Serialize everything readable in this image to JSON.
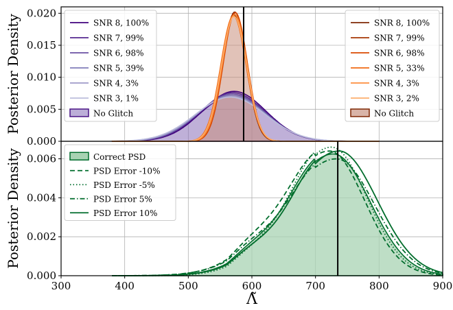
{
  "chart_data": [
    {
      "type": "area",
      "panel": "top",
      "ylabel": "Posterior Density",
      "xlim": [
        300,
        900
      ],
      "ylim": [
        0,
        0.021
      ],
      "yticks": [
        "0.000",
        "0.005",
        "0.010",
        "0.015",
        "0.020"
      ],
      "grid": true,
      "vline_x": 587,
      "legend_left": {
        "placement": "top-left",
        "entries": [
          {
            "label": "SNR 8, 100%",
            "color": "#3f007d"
          },
          {
            "label": "SNR 7, 99%",
            "color": "#54278f"
          },
          {
            "label": "SNR 6, 98%",
            "color": "#6a51a3"
          },
          {
            "label": "SNR 5, 39%",
            "color": "#807dba"
          },
          {
            "label": "SNR 4, 3%",
            "color": "#9e9ac8"
          },
          {
            "label": "SNR 3, 1%",
            "color": "#bcbddc"
          },
          {
            "label": "No Glitch",
            "color": "#4a1486",
            "fill": "#bcaed8"
          }
        ]
      },
      "legend_right": {
        "placement": "top-right",
        "entries": [
          {
            "label": "SNR 8, 100%",
            "color": "#7f2704"
          },
          {
            "label": "SNR 7, 99%",
            "color": "#a63603"
          },
          {
            "label": "SNR 6, 98%",
            "color": "#d94801"
          },
          {
            "label": "SNR 5, 33%",
            "color": "#f16913"
          },
          {
            "label": "SNR 4, 3%",
            "color": "#fd8d3c"
          },
          {
            "label": "SNR 3, 2%",
            "color": "#fdae6b"
          },
          {
            "label": "No Glitch",
            "color": "#7f2704",
            "fill": "#d9b4a8"
          }
        ]
      },
      "series": [
        {
          "name": "No Glitch",
          "group": "purple",
          "filled": true,
          "color": "#4a1486",
          "fill": "#8a6fb8",
          "mu": 570,
          "sigma": 51,
          "peak": 0.0072
        },
        {
          "name": "SNR 8, 100%",
          "group": "purple",
          "color": "#3f007d",
          "mu": 572,
          "sigma": 50,
          "peak": 0.0078
        },
        {
          "name": "SNR 7, 99%",
          "group": "purple",
          "color": "#54278f",
          "mu": 570,
          "sigma": 51,
          "peak": 0.0076
        },
        {
          "name": "SNR 6, 98%",
          "group": "purple",
          "color": "#6a51a3",
          "mu": 569,
          "sigma": 52,
          "peak": 0.0074
        },
        {
          "name": "SNR 5, 39%",
          "group": "purple",
          "color": "#807dba",
          "mu": 568,
          "sigma": 53,
          "peak": 0.0072
        },
        {
          "name": "SNR 4, 3%",
          "group": "purple",
          "color": "#9e9ac8",
          "mu": 567,
          "sigma": 54,
          "peak": 0.007
        },
        {
          "name": "SNR 3, 1%",
          "group": "purple",
          "color": "#bcbddc",
          "mu": 566,
          "sigma": 55,
          "peak": 0.0069
        },
        {
          "name": "No Glitch",
          "group": "orange",
          "filled": true,
          "color": "#7f2704",
          "fill": "#c98f7e",
          "mu": 572,
          "sigma": 19,
          "peak": 0.0197
        },
        {
          "name": "SNR 8, 100%",
          "group": "orange",
          "color": "#7f2704",
          "mu": 573,
          "sigma": 19,
          "peak": 0.0202
        },
        {
          "name": "SNR 7, 99%",
          "group": "orange",
          "color": "#a63603",
          "mu": 572,
          "sigma": 19.5,
          "peak": 0.0199
        },
        {
          "name": "SNR 6, 98%",
          "group": "orange",
          "color": "#d94801",
          "mu": 574,
          "sigma": 19,
          "peak": 0.0201
        },
        {
          "name": "SNR 5, 33%",
          "group": "orange",
          "color": "#f16913",
          "mu": 571,
          "sigma": 20,
          "peak": 0.0196
        },
        {
          "name": "SNR 4, 3%",
          "group": "orange",
          "color": "#fd8d3c",
          "mu": 573,
          "sigma": 19.5,
          "peak": 0.0198
        },
        {
          "name": "SNR 3, 2%",
          "group": "orange",
          "color": "#fdae6b",
          "mu": 572,
          "sigma": 20,
          "peak": 0.0195
        }
      ]
    },
    {
      "type": "area",
      "panel": "bottom",
      "xlabel": "Λ̃",
      "ylabel": "Posterior Density",
      "xlim": [
        300,
        900
      ],
      "ylim": [
        0,
        0.0069
      ],
      "xticks": [
        "300",
        "400",
        "500",
        "600",
        "700",
        "800",
        "900"
      ],
      "yticks": [
        "0.000",
        "0.002",
        "0.004",
        "0.006"
      ],
      "grid": true,
      "vline_x": 735,
      "legend": {
        "placement": "top-left",
        "entries": [
          {
            "label": "Correct PSD",
            "color": "#006d2c",
            "style": "patch",
            "fill": "#a8d3b3"
          },
          {
            "label": "PSD Error -10%",
            "color": "#006d2c",
            "style": "dashed"
          },
          {
            "label": "PSD Error -5%",
            "color": "#006d2c",
            "style": "dotted"
          },
          {
            "label": "PSD Error 5%",
            "color": "#006d2c",
            "style": "dashdot"
          },
          {
            "label": "PSD Error 10%",
            "color": "#006d2c",
            "style": "solid"
          }
        ]
      },
      "series": [
        {
          "name": "Correct PSD",
          "filled": true,
          "color": "#006d2c",
          "fill": "#a8d3b3",
          "mu": 728,
          "sl": 78,
          "sr": 58,
          "peak": 0.00625
        },
        {
          "name": "PSD Error -10%",
          "style": "dashed",
          "color": "#006d2c",
          "mu": 722,
          "sl": 80,
          "sr": 55,
          "peak": 0.0064
        },
        {
          "name": "PSD Error -5%",
          "style": "dotted",
          "color": "#006d2c",
          "mu": 725,
          "sl": 72,
          "sr": 56,
          "peak": 0.0066
        },
        {
          "name": "PSD Error 5%",
          "style": "dashdot",
          "color": "#006d2c",
          "mu": 733,
          "sl": 85,
          "sr": 60,
          "peak": 0.006
        },
        {
          "name": "PSD Error 10%",
          "style": "solid",
          "color": "#006d2c",
          "mu": 737,
          "sl": 80,
          "sr": 60,
          "peak": 0.0064
        }
      ]
    }
  ]
}
